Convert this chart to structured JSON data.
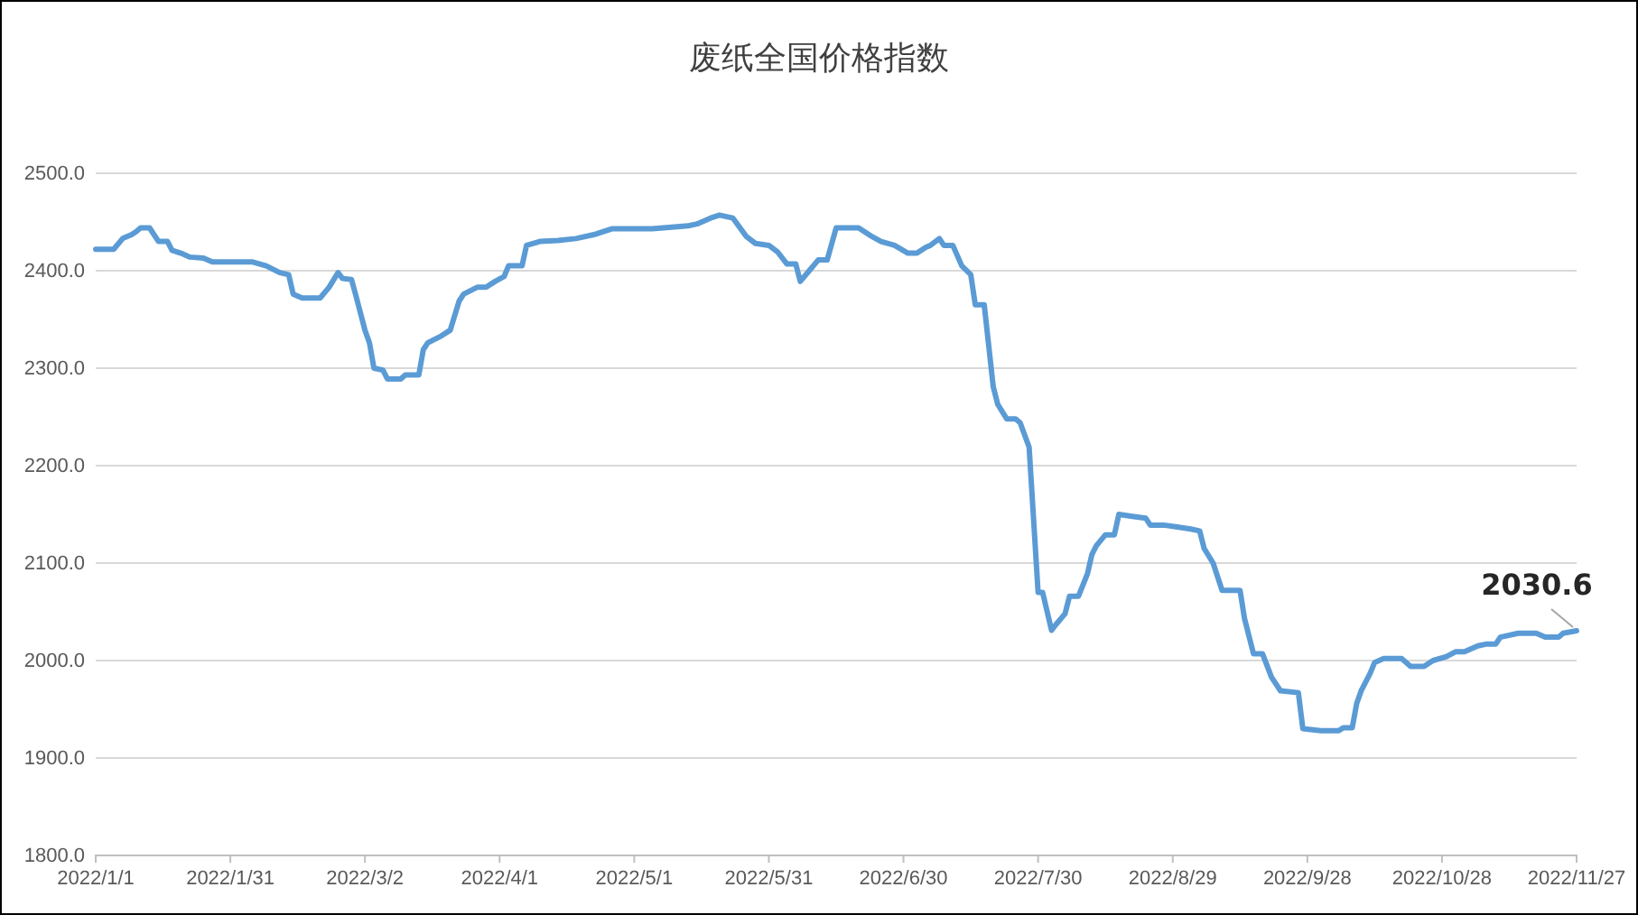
{
  "chart_data": {
    "type": "line",
    "title": "废纸全国价格指数",
    "x": [
      "2022-01-01",
      "2022-01-05",
      "2022-01-07",
      "2022-01-09",
      "2022-01-10",
      "2022-01-11",
      "2022-01-13",
      "2022-01-15",
      "2022-01-17",
      "2022-01-18",
      "2022-01-20",
      "2022-01-22",
      "2022-01-25",
      "2022-01-27",
      "2022-02-05",
      "2022-02-08",
      "2022-02-11",
      "2022-02-13",
      "2022-02-14",
      "2022-02-16",
      "2022-02-20",
      "2022-02-22",
      "2022-02-24",
      "2022-02-25",
      "2022-02-27",
      "2022-02-28",
      "2022-03-02",
      "2022-03-03",
      "2022-03-04",
      "2022-03-06",
      "2022-03-07",
      "2022-03-10",
      "2022-03-11",
      "2022-03-14",
      "2022-03-15",
      "2022-03-16",
      "2022-03-19",
      "2022-03-21",
      "2022-03-23",
      "2022-03-24",
      "2022-03-27",
      "2022-03-29",
      "2022-03-31",
      "2022-04-02",
      "2022-04-03",
      "2022-04-06",
      "2022-04-07",
      "2022-04-10",
      "2022-04-14",
      "2022-04-18",
      "2022-04-22",
      "2022-04-26",
      "2022-05-05",
      "2022-05-13",
      "2022-05-15",
      "2022-05-18",
      "2022-05-20",
      "2022-05-23",
      "2022-05-26",
      "2022-05-28",
      "2022-05-31",
      "2022-06-02",
      "2022-06-04",
      "2022-06-06",
      "2022-06-07",
      "2022-06-09",
      "2022-06-11",
      "2022-06-13",
      "2022-06-15",
      "2022-06-20",
      "2022-06-23",
      "2022-06-25",
      "2022-06-28",
      "2022-07-01",
      "2022-07-03",
      "2022-07-05",
      "2022-07-06",
      "2022-07-08",
      "2022-07-09",
      "2022-07-11",
      "2022-07-13",
      "2022-07-15",
      "2022-07-16",
      "2022-07-18",
      "2022-07-20",
      "2022-07-21",
      "2022-07-23",
      "2022-07-25",
      "2022-07-26",
      "2022-07-28",
      "2022-07-30",
      "2022-07-31",
      "2022-08-02",
      "2022-08-03",
      "2022-08-05",
      "2022-08-06",
      "2022-08-08",
      "2022-08-10",
      "2022-08-11",
      "2022-08-12",
      "2022-08-14",
      "2022-08-16",
      "2022-08-17",
      "2022-08-20",
      "2022-08-23",
      "2022-08-24",
      "2022-08-27",
      "2022-08-30",
      "2022-09-02",
      "2022-09-04",
      "2022-09-05",
      "2022-09-07",
      "2022-09-09",
      "2022-09-13",
      "2022-09-14",
      "2022-09-16",
      "2022-09-18",
      "2022-09-20",
      "2022-09-22",
      "2022-09-26",
      "2022-09-27",
      "2022-10-01",
      "2022-10-05",
      "2022-10-06",
      "2022-10-08",
      "2022-10-09",
      "2022-10-10",
      "2022-10-12",
      "2022-10-13",
      "2022-10-15",
      "2022-10-19",
      "2022-10-21",
      "2022-10-24",
      "2022-10-26",
      "2022-10-29",
      "2022-10-31",
      "2022-11-02",
      "2022-11-05",
      "2022-11-07",
      "2022-11-09",
      "2022-11-10",
      "2022-11-14",
      "2022-11-18",
      "2022-11-20",
      "2022-11-23",
      "2022-11-24",
      "2022-11-27"
    ],
    "series": [
      {
        "color": "#5b9bd5",
        "values": [
          2422,
          2422,
          2433,
          2437,
          2440,
          2444,
          2444,
          2430,
          2430,
          2421,
          2418,
          2414,
          2413,
          2409,
          2409,
          2405,
          2398,
          2396,
          2376,
          2372,
          2372,
          2383,
          2398,
          2392,
          2391,
          2374,
          2339,
          2326,
          2300,
          2298,
          2289,
          2289,
          2293,
          2293,
          2319,
          2326,
          2333,
          2339,
          2369,
          2376,
          2383,
          2383,
          2389,
          2394,
          2405,
          2405,
          2426,
          2430,
          2431,
          2433,
          2437,
          2443,
          2443,
          2446,
          2448,
          2454,
          2457,
          2454,
          2435,
          2428,
          2426,
          2419,
          2407,
          2407,
          2389,
          2400,
          2411,
          2411,
          2444,
          2444,
          2435,
          2430,
          2426,
          2418,
          2418,
          2424,
          2426,
          2433,
          2426,
          2426,
          2405,
          2396,
          2365,
          2365,
          2281,
          2263,
          2248,
          2248,
          2244,
          2219,
          2070,
          2070,
          2031,
          2037,
          2048,
          2066,
          2066,
          2089,
          2109,
          2118,
          2129,
          2129,
          2150,
          2148,
          2146,
          2139,
          2139,
          2137,
          2135,
          2133,
          2115,
          2100,
          2072,
          2072,
          2043,
          2007,
          2007,
          1983,
          1969,
          1967,
          1930,
          1928,
          1928,
          1931,
          1931,
          1956,
          1969,
          1987,
          1998,
          2002,
          2002,
          1994,
          1994,
          2000,
          2004,
          2009,
          2009,
          2015,
          2017,
          2017,
          2024,
          2028,
          2028,
          2024,
          2024,
          2028,
          2030.6
        ]
      }
    ],
    "xlim": [
      "2022-01-01",
      "2022-11-27"
    ],
    "xticks": [
      {
        "value": "2022-01-01",
        "label": "2022/1/1"
      },
      {
        "value": "2022-01-31",
        "label": "2022/1/31"
      },
      {
        "value": "2022-03-02",
        "label": "2022/3/2"
      },
      {
        "value": "2022-04-01",
        "label": "2022/4/1"
      },
      {
        "value": "2022-05-01",
        "label": "2022/5/1"
      },
      {
        "value": "2022-05-31",
        "label": "2022/5/31"
      },
      {
        "value": "2022-06-30",
        "label": "2022/6/30"
      },
      {
        "value": "2022-07-30",
        "label": "2022/7/30"
      },
      {
        "value": "2022-08-29",
        "label": "2022/8/29"
      },
      {
        "value": "2022-09-28",
        "label": "2022/9/28"
      },
      {
        "value": "2022-10-28",
        "label": "2022/10/28"
      },
      {
        "value": "2022-11-27",
        "label": "2022/11/27"
      }
    ],
    "ylim": [
      1800,
      2500
    ],
    "yticks": [
      {
        "value": 1800,
        "label": "1800.0"
      },
      {
        "value": 1900,
        "label": "1900.0"
      },
      {
        "value": 2000,
        "label": "2000.0"
      },
      {
        "value": 2100,
        "label": "2100.0"
      },
      {
        "value": 2200,
        "label": "2200.0"
      },
      {
        "value": 2300,
        "label": "2300.0"
      },
      {
        "value": 2400,
        "label": "2400.0"
      },
      {
        "value": 2500,
        "label": "2500.0"
      }
    ],
    "grid": "y",
    "marker": "none",
    "line_style": "solid",
    "annotations": [
      {
        "text": "2030.6",
        "x": "2022-11-27",
        "y": 2030.6
      }
    ]
  }
}
